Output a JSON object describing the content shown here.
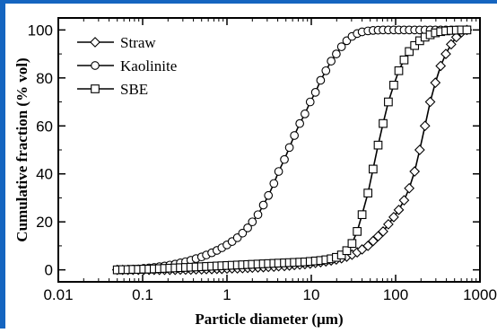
{
  "chart_data": {
    "type": "line",
    "xlabel": "Particle diameter (µm)",
    "ylabel": "Cumulative fraction (% vol)",
    "xscale": "log",
    "xlim": [
      0.01,
      1000
    ],
    "ylim": [
      -5,
      105
    ],
    "x_ticks": [
      "0.01",
      "0.1",
      "1",
      "10",
      "100",
      "1000"
    ],
    "y_ticks": [
      "0",
      "20",
      "40",
      "60",
      "80",
      "100"
    ],
    "legend_position": "top-left",
    "grid": false,
    "colors": {
      "frame_accent": "#1565c0",
      "ink": "#000000"
    },
    "series": [
      {
        "name": "Straw",
        "marker": "diamond",
        "x": [
          0.05,
          0.058,
          0.067,
          0.077,
          0.089,
          0.103,
          0.119,
          0.137,
          0.158,
          0.182,
          0.21,
          0.243,
          0.28,
          0.323,
          0.373,
          0.43,
          0.5,
          0.57,
          0.66,
          0.76,
          0.87,
          1.0,
          1.15,
          1.33,
          1.53,
          1.76,
          2.0,
          2.33,
          2.7,
          3.1,
          3.6,
          4.1,
          4.8,
          5.5,
          6.3,
          7.3,
          8.4,
          9.7,
          11.2,
          12.9,
          14.9,
          17.2,
          19.8,
          22.8,
          26.3,
          30.4,
          35,
          40,
          47,
          54,
          62,
          71,
          82,
          95,
          109,
          126,
          145,
          168,
          193,
          223,
          257,
          296,
          342,
          394,
          455,
          525,
          605,
          700
        ],
        "y": [
          0,
          0,
          0,
          0,
          0,
          0,
          0,
          0,
          0,
          0,
          0,
          0,
          0.1,
          0.1,
          0.1,
          0.2,
          0.2,
          0.3,
          0.3,
          0.4,
          0.4,
          0.5,
          0.6,
          0.6,
          0.7,
          0.8,
          0.9,
          1.0,
          1.1,
          1.2,
          1.3,
          1.5,
          1.6,
          1.8,
          2.0,
          2.2,
          2.4,
          2.6,
          2.9,
          3.2,
          3.5,
          3.9,
          4.3,
          4.8,
          5.5,
          6.3,
          7.3,
          8.5,
          10,
          12,
          14,
          16,
          19,
          22,
          25,
          29,
          34,
          41,
          50,
          60,
          70,
          78,
          85,
          90,
          94,
          97,
          99,
          100
        ]
      },
      {
        "name": "Kaolinite",
        "marker": "circle",
        "x": [
          0.05,
          0.058,
          0.067,
          0.077,
          0.089,
          0.103,
          0.119,
          0.137,
          0.158,
          0.182,
          0.21,
          0.243,
          0.28,
          0.323,
          0.373,
          0.43,
          0.5,
          0.57,
          0.66,
          0.76,
          0.87,
          1.0,
          1.15,
          1.33,
          1.53,
          1.76,
          2.0,
          2.33,
          2.7,
          3.1,
          3.6,
          4.1,
          4.8,
          5.5,
          6.3,
          7.3,
          8.4,
          9.7,
          11.2,
          12.9,
          14.9,
          17.2,
          19.8,
          22.8,
          26.3,
          30.4,
          35,
          40,
          47,
          54,
          62,
          71,
          82,
          95,
          109,
          126,
          145,
          168,
          193,
          223,
          257,
          296,
          342,
          394,
          455,
          525,
          605,
          700
        ],
        "y": [
          0,
          0.1,
          0.2,
          0.3,
          0.4,
          0.6,
          0.8,
          1.0,
          1.3,
          1.6,
          2.0,
          2.4,
          2.9,
          3.4,
          4.0,
          4.7,
          5.4,
          6.2,
          7.1,
          8.1,
          9.2,
          10.4,
          11.8,
          13.4,
          15.3,
          17.5,
          20,
          23,
          27,
          31,
          36,
          41,
          46,
          51,
          56,
          61,
          65,
          70,
          74,
          79,
          83,
          87,
          90,
          93,
          95.5,
          97.3,
          98.5,
          99.2,
          99.6,
          99.8,
          99.9,
          100,
          100,
          100,
          100,
          100,
          100,
          100,
          100,
          100,
          100,
          100,
          100,
          100,
          100,
          100,
          100,
          100
        ]
      },
      {
        "name": "SBE",
        "marker": "square",
        "x": [
          0.05,
          0.058,
          0.067,
          0.077,
          0.089,
          0.103,
          0.119,
          0.137,
          0.158,
          0.182,
          0.21,
          0.243,
          0.28,
          0.323,
          0.373,
          0.43,
          0.5,
          0.57,
          0.66,
          0.76,
          0.87,
          1.0,
          1.15,
          1.33,
          1.53,
          1.76,
          2.0,
          2.33,
          2.7,
          3.1,
          3.6,
          4.1,
          4.8,
          5.5,
          6.3,
          7.3,
          8.4,
          9.7,
          11.2,
          12.9,
          14.9,
          17.2,
          19.8,
          22.8,
          26.3,
          30.4,
          35,
          40,
          47,
          54,
          62,
          71,
          82,
          95,
          109,
          126,
          145,
          168,
          193,
          223,
          257,
          296,
          342,
          394,
          455,
          525,
          605,
          700
        ],
        "y": [
          0,
          0.1,
          0.1,
          0.2,
          0.2,
          0.3,
          0.3,
          0.4,
          0.5,
          0.6,
          0.7,
          0.8,
          0.9,
          1.0,
          1.1,
          1.2,
          1.3,
          1.4,
          1.5,
          1.6,
          1.7,
          1.8,
          1.9,
          2.0,
          2.1,
          2.2,
          2.3,
          2.4,
          2.5,
          2.6,
          2.7,
          2.8,
          2.9,
          3.0,
          3.1,
          3.2,
          3.3,
          3.5,
          3.7,
          3.9,
          4.2,
          4.6,
          5.2,
          6.2,
          8,
          11,
          16,
          23,
          32,
          42,
          52,
          61,
          70,
          77,
          83,
          87.5,
          91,
          93.5,
          95.5,
          97,
          98,
          98.8,
          99.3,
          99.6,
          99.8,
          99.9,
          100,
          100
        ]
      }
    ]
  }
}
